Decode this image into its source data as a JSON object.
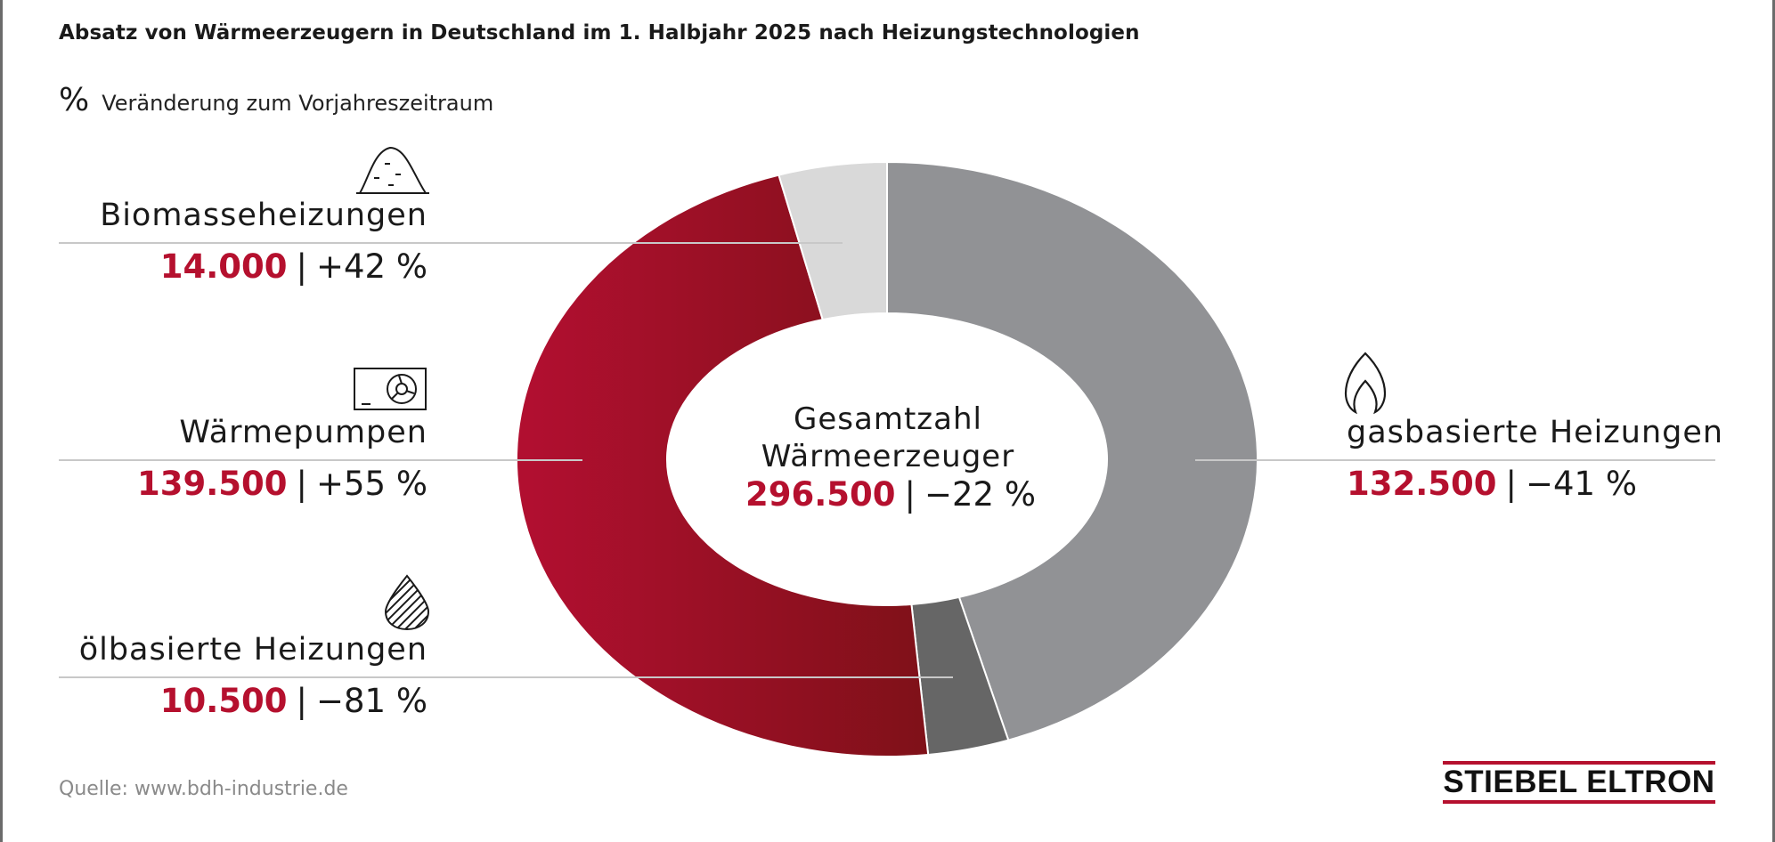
{
  "title": "Absatz von Wärmeerzeugern in Deutschland im 1. Halbjahr 2025 nach Heizungstechnologien",
  "legend_note": {
    "symbol": "%",
    "text": "Veränderung zum Vorjahreszeitraum"
  },
  "center": {
    "line1": "Gesamtzahl",
    "line2": "Wärmeerzeuger",
    "value": "296.500",
    "separator": "|",
    "change": "−22 %"
  },
  "categories": [
    {
      "label": "gasbasierte Heizungen",
      "value": "132.500",
      "separator": "|",
      "change": "−41 %",
      "icon": "flame-icon"
    },
    {
      "label": "Biomasseheizungen",
      "value": "14.000",
      "separator": "|",
      "change": "+42 %",
      "icon": "wood-pile-icon"
    },
    {
      "label": "Wärmepumpen",
      "value": "139.500",
      "separator": "|",
      "change": "+55 %",
      "icon": "heat-pump-icon"
    },
    {
      "label": "ölbasierte Heizungen",
      "value": "10.500",
      "separator": "|",
      "change": "−81 %",
      "icon": "oil-drop-icon"
    }
  ],
  "source": "Quelle: www.bdh-industrie.de",
  "brand": "STIEBEL ELTRON",
  "colors": {
    "accent": "#b5102e",
    "gas": "#919295",
    "biomass": "#d9d9d9",
    "heatpump_start": "#b10f30",
    "heatpump_end": "#7e1118",
    "oil": "#666666",
    "rule": "#c8c8c8"
  },
  "chart_data": {
    "type": "pie",
    "variant": "donut",
    "title": "Absatz von Wärmeerzeugern in Deutschland im 1. Halbjahr 2025 nach Heizungstechnologien",
    "categories": [
      "gasbasierte Heizungen",
      "ölbasierte Heizungen",
      "Wärmepumpen",
      "Biomasseheizungen"
    ],
    "values": [
      132500,
      10500,
      139500,
      14000
    ],
    "changes": [
      "−41 %",
      "−81 %",
      "+55 %",
      "+42 %"
    ],
    "colors": [
      "#919295",
      "#666666",
      "#b10f30",
      "#d9d9d9"
    ],
    "total": 296500,
    "total_change": "−22 %",
    "start_angle": "top (12 o'clock)",
    "direction": "clockwise"
  }
}
